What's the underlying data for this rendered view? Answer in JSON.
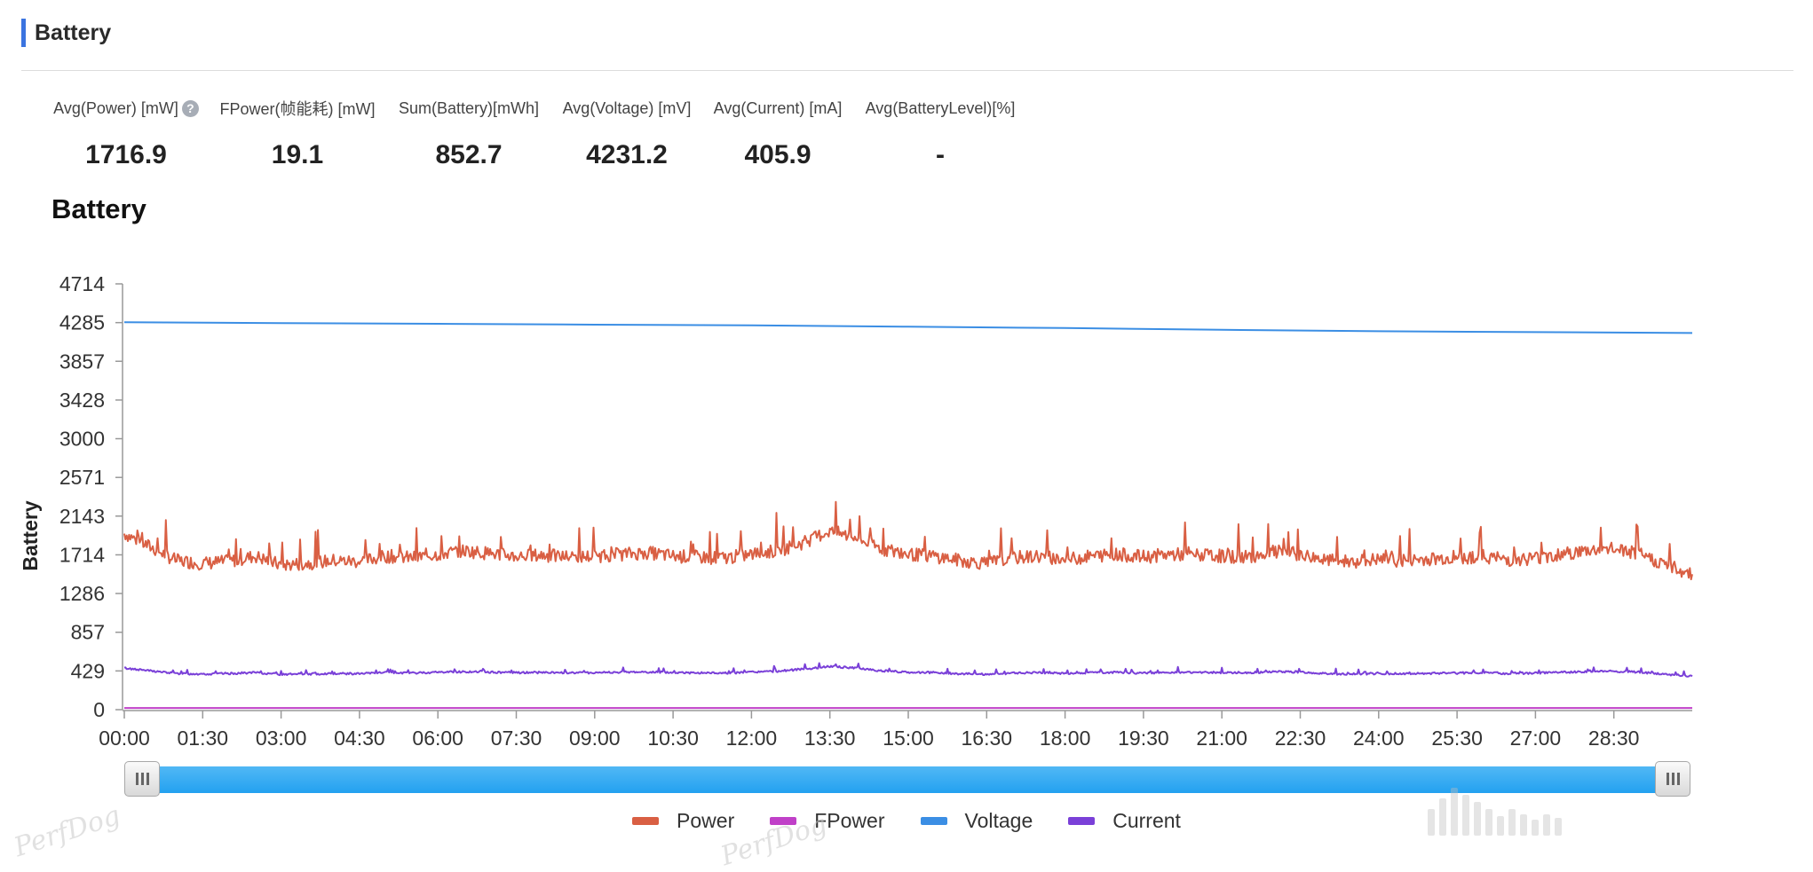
{
  "section": {
    "title": "Battery"
  },
  "metrics": [
    {
      "label": "Avg(Power) [mW]",
      "value": "1716.9",
      "help": "?"
    },
    {
      "label": "FPower(帧能耗) [mW]",
      "value": "19.1"
    },
    {
      "label": "Sum(Battery)[mWh]",
      "value": "852.7"
    },
    {
      "label": "Avg(Voltage) [mV]",
      "value": "4231.2"
    },
    {
      "label": "Avg(Current) [mA]",
      "value": "405.9"
    },
    {
      "label": "Avg(BatteryLevel)[%]",
      "value": "-"
    }
  ],
  "watermark": "PerfDog",
  "chart_data": {
    "type": "line",
    "title": "Battery",
    "ylabel": "Battery",
    "xlabel": "",
    "ylim": [
      0,
      4714
    ],
    "y_ticks": [
      "4714",
      "4285",
      "3857",
      "3428",
      "3000",
      "2571",
      "2143",
      "1714",
      "1286",
      "857",
      "429",
      "0"
    ],
    "x_ticks": [
      "00:00",
      "01:30",
      "03:00",
      "04:30",
      "06:00",
      "07:30",
      "09:00",
      "10:30",
      "12:00",
      "13:30",
      "15:00",
      "16:30",
      "18:00",
      "19:30",
      "21:00",
      "22:30",
      "24:00",
      "25:30",
      "27:00",
      "28:30"
    ],
    "x_range_minutes": [
      0,
      30
    ],
    "grid": false,
    "legend_position": "bottom",
    "series": [
      {
        "name": "Power",
        "color": "#d95f43",
        "x": [
          0,
          0.5,
          1,
          1.5,
          2,
          2.5,
          3,
          3.5,
          4,
          4.5,
          5,
          5.5,
          6,
          6.5,
          7,
          7.5,
          8,
          8.5,
          9,
          9.5,
          10,
          10.5,
          11,
          11.5,
          12,
          12.5,
          13,
          13.5,
          14,
          14.5,
          15,
          15.5,
          16,
          16.5,
          17,
          17.5,
          18,
          18.5,
          19,
          19.5,
          20,
          20.5,
          21,
          21.5,
          22,
          22.5,
          23,
          23.5,
          24,
          24.5,
          25,
          25.5,
          26,
          26.5,
          27,
          27.5,
          28,
          28.5,
          29,
          29.5,
          30
        ],
        "y": [
          1950,
          1800,
          1650,
          1620,
          1640,
          1700,
          1600,
          1620,
          1650,
          1640,
          1700,
          1680,
          1720,
          1760,
          1730,
          1700,
          1710,
          1690,
          1700,
          1720,
          1740,
          1700,
          1690,
          1680,
          1720,
          1760,
          1850,
          1980,
          1900,
          1780,
          1720,
          1700,
          1650,
          1620,
          1680,
          1700,
          1660,
          1700,
          1720,
          1690,
          1720,
          1710,
          1700,
          1690,
          1750,
          1720,
          1650,
          1640,
          1660,
          1650,
          1670,
          1680,
          1700,
          1660,
          1680,
          1720,
          1760,
          1780,
          1720,
          1600,
          1500
        ]
      },
      {
        "name": "FPower",
        "color": "#c040c8",
        "x": [
          0,
          30
        ],
        "y": [
          19,
          19
        ]
      },
      {
        "name": "Voltage",
        "color": "#3b8ee4",
        "x": [
          0,
          3,
          6,
          9,
          12,
          15,
          18,
          21,
          24,
          27,
          30
        ],
        "y": [
          4290,
          4280,
          4272,
          4262,
          4255,
          4240,
          4225,
          4205,
          4190,
          4180,
          4170
        ]
      },
      {
        "name": "Current",
        "color": "#7a40d8",
        "x": [
          0,
          0.5,
          1,
          1.5,
          2,
          2.5,
          3,
          3.5,
          4,
          4.5,
          5,
          5.5,
          6,
          6.5,
          7,
          7.5,
          8,
          8.5,
          9,
          9.5,
          10,
          10.5,
          11,
          11.5,
          12,
          12.5,
          13,
          13.5,
          14,
          14.5,
          15,
          15.5,
          16,
          16.5,
          17,
          17.5,
          18,
          18.5,
          19,
          19.5,
          20,
          20.5,
          21,
          21.5,
          22,
          22.5,
          23,
          23.5,
          24,
          24.5,
          25,
          25.5,
          26,
          26.5,
          27,
          27.5,
          28,
          28.5,
          29,
          29.5,
          30
        ],
        "y": [
          460,
          430,
          400,
          395,
          400,
          410,
          390,
          395,
          400,
          398,
          410,
          405,
          415,
          420,
          415,
          410,
          412,
          408,
          410,
          415,
          418,
          410,
          408,
          405,
          415,
          425,
          450,
          480,
          460,
          430,
          415,
          410,
          398,
          392,
          405,
          410,
          400,
          410,
          415,
          405,
          415,
          412,
          410,
          408,
          420,
          415,
          398,
          395,
          400,
          398,
          402,
          405,
          410,
          400,
          405,
          415,
          420,
          425,
          415,
          390,
          370
        ]
      }
    ]
  }
}
